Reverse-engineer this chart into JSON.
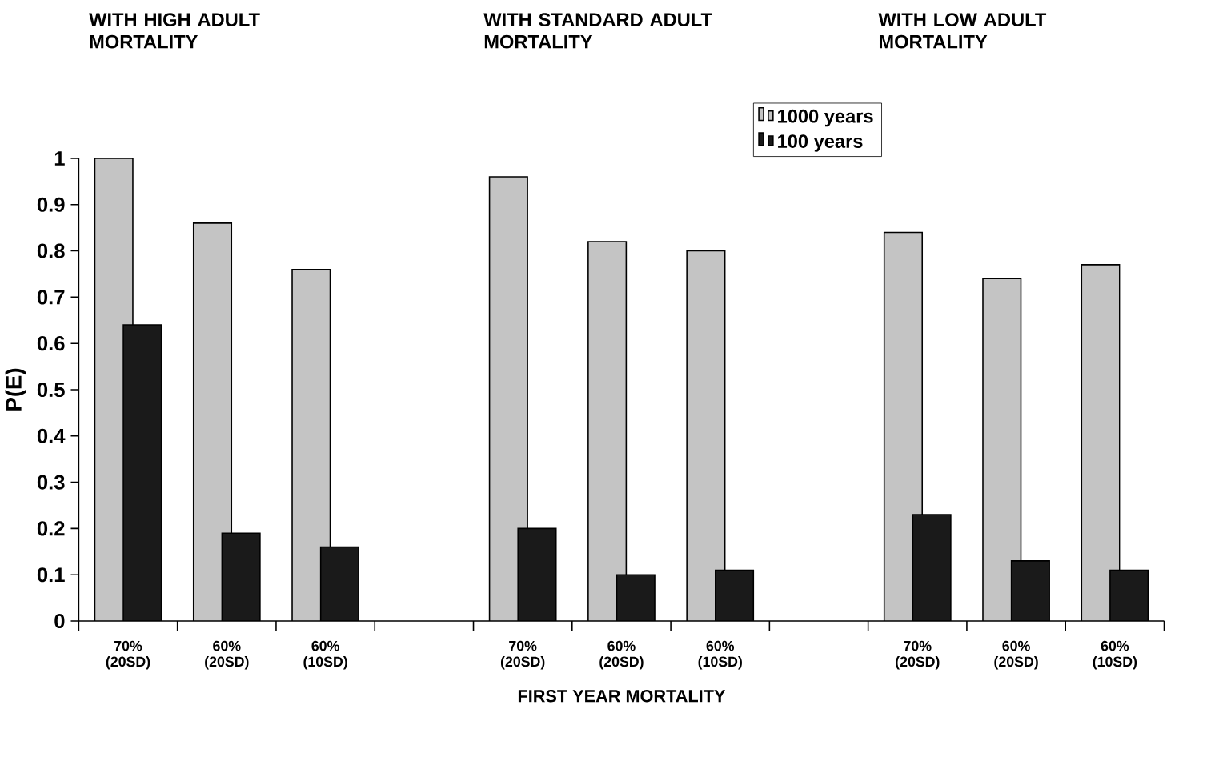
{
  "chart_data": {
    "type": "bar",
    "xlabel": "FIRST YEAR MORTALITY",
    "ylabel": "P(E)",
    "categories": [
      "70% (20SD)",
      "60% (20SD)",
      "60% (10SD)",
      null,
      "70% (20SD)",
      "60% (20SD)",
      "60% (10SD)",
      null,
      "70% (20SD)",
      "60% (20SD)",
      "60% (10SD)"
    ],
    "series": [
      {
        "name": "1000 years",
        "color": "#c4c4c4",
        "values": [
          1.0,
          0.86,
          0.76,
          null,
          0.96,
          0.82,
          0.8,
          null,
          0.84,
          0.74,
          0.77
        ]
      },
      {
        "name": "100 years",
        "color": "#1a1a1a",
        "values": [
          0.64,
          0.19,
          0.16,
          null,
          0.2,
          0.1,
          0.11,
          null,
          0.23,
          0.13,
          0.11
        ]
      }
    ],
    "annotations": [
      "WITH HIGH ADULT MORTALITY",
      "WITH STANDARD ADULT MORTALITY",
      "WITH LOW ADULT MORTALITY"
    ],
    "ylim": [
      0,
      1
    ],
    "yticks": [
      0,
      0.1,
      0.2,
      0.3,
      0.4,
      0.5,
      0.6,
      0.7,
      0.8,
      0.9,
      1
    ],
    "grid": false,
    "legend": "top right"
  }
}
